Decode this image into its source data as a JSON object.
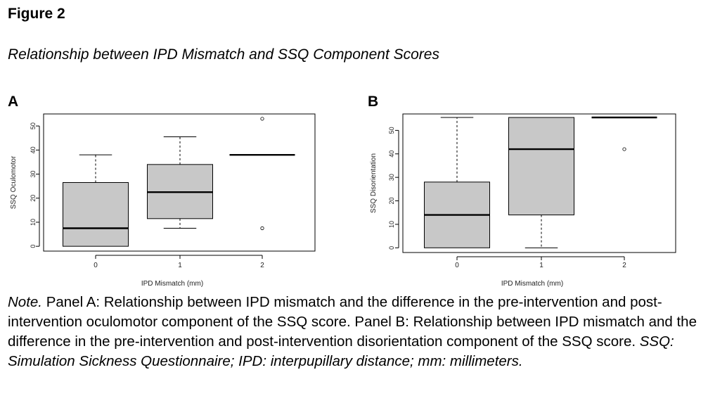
{
  "figure": {
    "label": "Figure 2",
    "title": "Relationship between IPD Mismatch and SSQ Component Scores"
  },
  "note": {
    "lead": "Note.",
    "text": " Panel A: Relationship between IPD mismatch and the difference in the pre-intervention and post-intervention oculomotor component of the SSQ score. Panel B: Relationship between IPD mismatch and the difference in the pre-intervention and post-intervention disorientation component of the SSQ score. ",
    "abbreviations": "SSQ: Simulation Sickness Questionnaire; IPD: interpupillary distance; mm: millimeters."
  },
  "chart_data": [
    {
      "panel": "A",
      "type": "box",
      "xlabel": "IPD Mismatch (mm)",
      "ylabel": "SSQ Oculomotor",
      "categories": [
        "0",
        "1",
        "2"
      ],
      "yticks": [
        0,
        10,
        20,
        30,
        40,
        50
      ],
      "ylim": [
        -2,
        55
      ],
      "box_color": "#c8c8c8",
      "boxes": [
        {
          "whisker_low": 0,
          "q1": 0,
          "median": 7.5,
          "q3": 26.5,
          "whisker_high": 38,
          "outliers": []
        },
        {
          "whisker_low": 7.5,
          "q1": 11.5,
          "median": 22.5,
          "q3": 34,
          "whisker_high": 45.5,
          "outliers": []
        },
        {
          "whisker_low": 38,
          "q1": 38,
          "median": 38,
          "q3": 38,
          "whisker_high": 38,
          "outliers": [
            53,
            7.5
          ]
        }
      ]
    },
    {
      "panel": "B",
      "type": "box",
      "xlabel": "IPD Mismatch (mm)",
      "ylabel": "SSQ Disorientation",
      "categories": [
        "0",
        "1",
        "2"
      ],
      "yticks": [
        0,
        10,
        20,
        30,
        40,
        50
      ],
      "ylim": [
        -2,
        57
      ],
      "box_color": "#c8c8c8",
      "boxes": [
        {
          "whisker_low": 0,
          "q1": 0,
          "median": 14,
          "q3": 28,
          "whisker_high": 55.5,
          "outliers": []
        },
        {
          "whisker_low": 0,
          "q1": 14,
          "median": 42,
          "q3": 55.5,
          "whisker_high": 55.5,
          "outliers": []
        },
        {
          "whisker_low": 55.5,
          "q1": 55.5,
          "median": 55.5,
          "q3": 55.5,
          "whisker_high": 55.5,
          "outliers": [
            42
          ]
        }
      ]
    }
  ]
}
